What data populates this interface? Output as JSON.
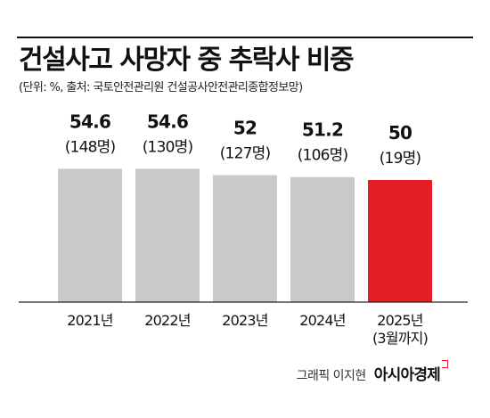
{
  "title": "건설사고 사망자 중 추락사 비중",
  "subtitle": "(단위: %, 출처: 국토안전관리원 건설공사안전관리종합정보망)",
  "footer": {
    "credit": "그래픽 이지현",
    "brand": "아시아경제"
  },
  "colors": {
    "bar": "#c9c9c9",
    "highlight": "#e41e26",
    "baseline": "#222222",
    "text": "#111111"
  },
  "chart_data": {
    "type": "bar",
    "title": "건설사고 사망자 중 추락사 비중",
    "ylabel": "",
    "xlabel": "",
    "ylim": [
      0,
      60
    ],
    "grid": false,
    "categories": [
      [
        "2021년"
      ],
      [
        "2022년"
      ],
      [
        "2023년"
      ],
      [
        "2024년"
      ],
      [
        "2025년",
        "(3월까지)"
      ]
    ],
    "values": [
      54.6,
      54.6,
      52,
      51.2,
      50
    ],
    "value_labels": [
      "54.6",
      "54.6",
      "52",
      "51.2",
      "50"
    ],
    "count_labels": [
      "(148명)",
      "(130명)",
      "(127명)",
      "(106명)",
      "(19명)"
    ],
    "highlight_index": 4
  }
}
